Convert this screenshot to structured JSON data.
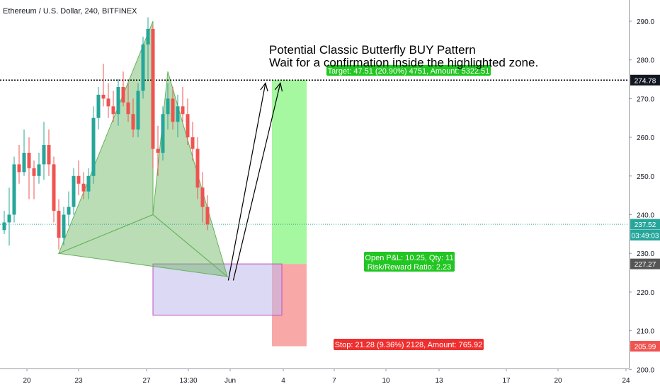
{
  "header": {
    "title": "Ethereum / U.S. Dollar, 240, BITFINEX"
  },
  "annotation": {
    "line1": "Potential Classic Butterfly BUY Pattern",
    "line2": "Wait for a confirmation inside the highlighted zone."
  },
  "chart_data": {
    "type": "candlestick",
    "symbol": "ETH/USD",
    "interval": "240",
    "exchange": "BITFINEX",
    "ylim": [
      196,
      296
    ],
    "y_ticks": [
      200,
      210,
      220,
      230,
      240,
      250,
      260,
      270,
      280,
      290
    ],
    "x_ticks": [
      "20",
      "23",
      "27",
      "13:30",
      "Jun",
      "4",
      "7",
      "10",
      "13",
      "17",
      "20",
      "24"
    ],
    "grid": false,
    "price_labels": [
      {
        "text": "274.78",
        "value": 274.78,
        "color": "#131722"
      },
      {
        "text": "237.52",
        "value": 237.52,
        "color": "#26a69a"
      },
      {
        "text": "03:49:03",
        "value": 234.7,
        "color": "#26a69a"
      },
      {
        "text": "227.27",
        "value": 227.27,
        "color": "#555555"
      },
      {
        "text": "205.99",
        "value": 205.99,
        "color": "#ef5350"
      }
    ],
    "reference_lines": [
      {
        "value": 274.78,
        "style": "dotted",
        "color": "#000000"
      },
      {
        "value": 237.52,
        "style": "dotted",
        "color": "#26a69a"
      }
    ],
    "pattern_points": {
      "X": {
        "i": 30,
        "price": 290
      },
      "A": {
        "i": 11,
        "price": 230
      },
      "B": {
        "i": 30,
        "price": 240
      },
      "C": {
        "i": 33,
        "price": 277
      },
      "D": {
        "i": 45,
        "price": 224
      }
    },
    "zones": {
      "buy_zone": {
        "i_from": 30,
        "i_to": 56,
        "price_from": 214,
        "price_to": 227.27
      },
      "target": {
        "i_from": 54,
        "i_to": 61,
        "price_from": 227.27,
        "price_to": 274.78
      },
      "stop": {
        "i_from": 54,
        "i_to": 61,
        "price_from": 205.99,
        "price_to": 227.27
      }
    },
    "position": {
      "target_label": "Target: 47.51 (20.90%) 4751, Amount: 5322.51",
      "pnl_label": "Open P&L: 10.25, Qty: 11",
      "rr_label": "Risk/Reward Ratio: 2.23",
      "stop_label": "Stop: 21.28 (9.36%) 2128, Amount: 765.92"
    },
    "arrows": [
      {
        "from": {
          "i": 45.2,
          "price": 223
        },
        "to": {
          "i": 52.7,
          "price": 274
        }
      },
      {
        "from": {
          "i": 46.2,
          "price": 223
        },
        "to": {
          "i": 55.7,
          "price": 274
        }
      }
    ],
    "candles": [
      [
        236,
        241,
        235,
        238
      ],
      [
        238,
        247,
        232,
        240
      ],
      [
        240,
        255,
        238,
        253
      ],
      [
        253,
        258,
        248,
        251
      ],
      [
        251,
        262,
        250,
        256
      ],
      [
        256,
        260,
        244,
        252
      ],
      [
        252,
        254,
        244,
        250
      ],
      [
        250,
        256,
        248,
        253
      ],
      [
        253,
        264,
        249,
        258
      ],
      [
        258,
        262,
        250,
        253
      ],
      [
        253,
        255,
        238,
        241
      ],
      [
        241,
        244,
        231,
        234
      ],
      [
        234,
        242,
        232,
        240
      ],
      [
        240,
        246,
        237,
        242
      ],
      [
        242,
        252,
        240,
        250
      ],
      [
        250,
        254,
        245,
        248
      ],
      [
        248,
        251,
        244,
        246
      ],
      [
        246,
        252,
        244,
        250
      ],
      [
        250,
        268,
        248,
        265
      ],
      [
        265,
        273,
        262,
        271
      ],
      [
        271,
        279,
        268,
        270
      ],
      [
        270,
        274,
        265,
        268
      ],
      [
        268,
        272,
        264,
        266
      ],
      [
        266,
        275,
        263,
        273
      ],
      [
        273,
        277,
        268,
        269
      ],
      [
        269,
        274,
        264,
        266
      ],
      [
        266,
        270,
        260,
        262
      ],
      [
        262,
        274,
        260,
        272
      ],
      [
        272,
        286,
        270,
        284
      ],
      [
        284,
        291,
        275,
        288
      ],
      [
        288,
        289,
        252,
        257
      ],
      [
        257,
        263,
        250,
        256
      ],
      [
        256,
        268,
        254,
        266
      ],
      [
        266,
        274,
        262,
        270
      ],
      [
        270,
        273,
        262,
        264
      ],
      [
        264,
        271,
        260,
        268
      ],
      [
        268,
        273,
        264,
        266
      ],
      [
        266,
        270,
        258,
        260
      ],
      [
        260,
        264,
        254,
        257
      ],
      [
        257,
        260,
        244,
        247
      ],
      [
        247,
        251,
        238,
        242
      ],
      [
        242,
        245,
        236,
        237.5
      ]
    ],
    "candle_colors": {
      "up": "#26a69a",
      "down": "#ef5350"
    },
    "pattern_color": "#66b35a"
  }
}
